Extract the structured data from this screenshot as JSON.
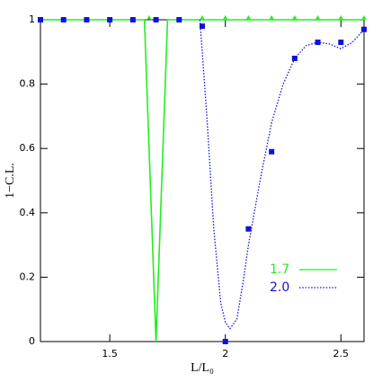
{
  "chart_data": {
    "type": "line",
    "x_label": "L/L₀",
    "y_label": "1−C.L.",
    "xlim": [
      1.2,
      2.6
    ],
    "ylim": [
      0,
      1
    ],
    "xticks": [
      {
        "value": 1.5,
        "label": "1.5"
      },
      2,
      {
        "value": 2.5,
        "label": "2.5"
      }
    ],
    "yticks": [
      0,
      {
        "value": 0.2,
        "label": "0.2"
      },
      {
        "value": 0.4,
        "label": "0.4"
      },
      {
        "value": 0.6,
        "label": "0.6"
      },
      {
        "value": 0.8,
        "label": "0.8"
      },
      1
    ],
    "legend": "lower right",
    "series": [
      {
        "name": "1.7",
        "color": "#22ee22",
        "line_style": "solid",
        "x": [
          1.2,
          1.65,
          1.7,
          1.75,
          2.6
        ],
        "values": [
          1,
          1,
          0,
          1,
          1
        ],
        "points_x": [
          1.67,
          1.9,
          2.0,
          2.1,
          2.2,
          2.3,
          2.4,
          2.5,
          2.6
        ],
        "points": [
          1,
          1,
          1,
          1,
          1,
          1,
          1,
          1,
          1
        ]
      },
      {
        "name": "2.0",
        "color": "#1010dd",
        "line_style": "dotted",
        "x": [
          1.89,
          1.92,
          1.95,
          1.98,
          2.0,
          2.02,
          2.05,
          2.08,
          2.1,
          2.15,
          2.2,
          2.25,
          2.3,
          2.35,
          2.4,
          2.45,
          2.5,
          2.55,
          2.6
        ],
        "values": [
          1,
          0.7,
          0.35,
          0.12,
          0.06,
          0.04,
          0.07,
          0.2,
          0.3,
          0.5,
          0.68,
          0.8,
          0.88,
          0.92,
          0.93,
          0.925,
          0.91,
          0.93,
          0.97
        ],
        "points_x": [
          1.2,
          1.3,
          1.4,
          1.5,
          1.6,
          1.7,
          1.8,
          1.9,
          2.0,
          2.1,
          2.2,
          2.3,
          2.4,
          2.5,
          2.6
        ],
        "points": [
          1,
          1,
          1,
          1,
          1,
          1,
          1,
          0.98,
          0,
          0.35,
          0.59,
          0.88,
          0.93,
          0.93,
          0.97
        ]
      }
    ]
  }
}
